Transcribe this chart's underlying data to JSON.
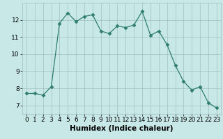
{
  "xlabel": "Humidex (Indice chaleur)",
  "x_values": [
    0,
    1,
    2,
    3,
    4,
    5,
    6,
    7,
    8,
    9,
    10,
    11,
    12,
    13,
    14,
    15,
    16,
    17,
    18,
    19,
    20,
    21,
    22,
    23
  ],
  "y_values": [
    7.7,
    7.7,
    7.6,
    8.1,
    11.8,
    12.4,
    11.9,
    12.2,
    12.3,
    11.35,
    11.2,
    11.65,
    11.55,
    11.7,
    12.5,
    11.1,
    11.35,
    10.55,
    9.35,
    8.4,
    7.9,
    8.1,
    7.15,
    6.85
  ],
  "line_color": "#2e7d6e",
  "marker": "D",
  "marker_size": 2.5,
  "background_color": "#c8e8e8",
  "grid_color": "#a0c0c0",
  "ylim": [
    6.5,
    13.0
  ],
  "yticks": [
    7,
    8,
    9,
    10,
    11,
    12
  ],
  "xticks": [
    0,
    1,
    2,
    3,
    4,
    5,
    6,
    7,
    8,
    9,
    10,
    11,
    12,
    13,
    14,
    15,
    16,
    17,
    18,
    19,
    20,
    21,
    22,
    23
  ],
  "tick_label_fontsize": 6.5,
  "xlabel_fontsize": 7.5,
  "xlim": [
    -0.5,
    23.5
  ]
}
